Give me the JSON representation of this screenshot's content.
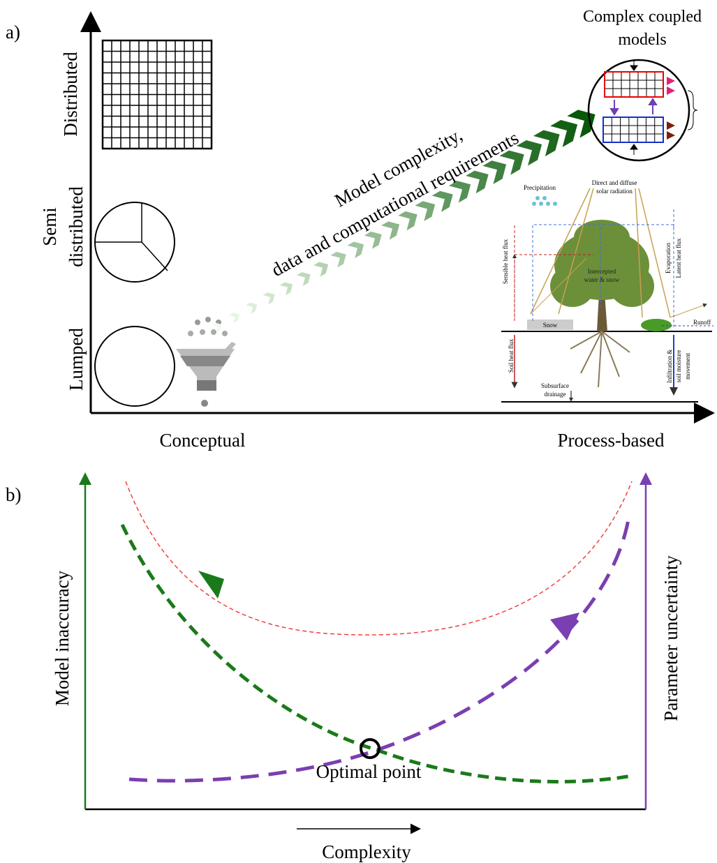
{
  "panel_a": {
    "label": "a)",
    "y_labels": {
      "distributed": "Distributed",
      "semi": [
        "Semi",
        "distributed"
      ],
      "lumped": "Lumped"
    },
    "x_labels": {
      "left": "Conceptual",
      "right": "Process-based"
    },
    "arrow_text": [
      "Model complexity,",
      "data and computational requirements"
    ],
    "coupled_title": [
      "Complex coupled",
      "models"
    ],
    "process": {
      "precipitation": "Precipitation",
      "radiation": [
        "Direct and diffuse",
        "solar radiation"
      ],
      "sensible": "Sensible heat flux",
      "intercepted": [
        "Intercepted",
        "water & snow"
      ],
      "evaporation": "Evaporation",
      "latent": "Latent heat flux",
      "snow": "Snow",
      "runoff": "Runoff",
      "soil_heat": "Soil heat flux",
      "infiltration": [
        "Infiltration &",
        "soil moisture",
        "movement"
      ],
      "subsurface": [
        "Subsurface",
        "drainage"
      ]
    }
  },
  "panel_b": {
    "label": "b)",
    "left_axis": "Model inaccuracy",
    "right_axis": "Parameter uncertainty",
    "optimal": "Optimal point",
    "x_axis": "Complexity"
  }
}
